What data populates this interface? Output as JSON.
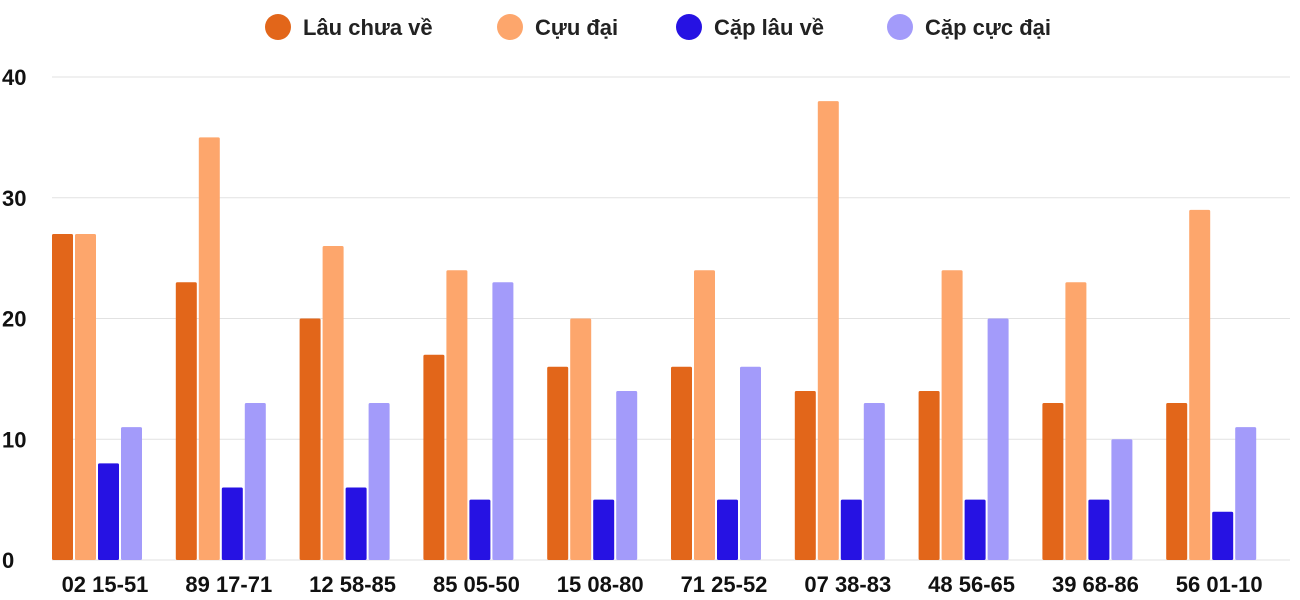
{
  "chart_data": {
    "type": "bar",
    "title": "",
    "xlabel": "",
    "ylabel": "",
    "ylim": [
      0,
      40
    ],
    "yticks": [
      0,
      10,
      20,
      30,
      40
    ],
    "grid": true,
    "legend_position": "top",
    "categories": [
      "02 15-51",
      "89 17-71",
      "12 58-85",
      "85 05-50",
      "15 08-80",
      "71 25-52",
      "07 38-83",
      "48 56-65",
      "39 68-86",
      "56 01-10"
    ],
    "series": [
      {
        "name": "Lâu chưa về",
        "color": "#e2661a",
        "values": [
          27,
          23,
          20,
          17,
          16,
          16,
          14,
          14,
          13,
          13
        ]
      },
      {
        "name": "Cựu đại",
        "color": "#fda66c",
        "values": [
          27,
          35,
          26,
          24,
          20,
          24,
          38,
          24,
          23,
          29
        ]
      },
      {
        "name": "Cặp lâu về",
        "color": "#2612e3",
        "values": [
          8,
          6,
          6,
          5,
          5,
          5,
          5,
          5,
          5,
          4
        ]
      },
      {
        "name": "Cặp cực đại",
        "color": "#a39bfa",
        "values": [
          11,
          13,
          13,
          23,
          14,
          16,
          13,
          20,
          10,
          11
        ]
      }
    ]
  }
}
